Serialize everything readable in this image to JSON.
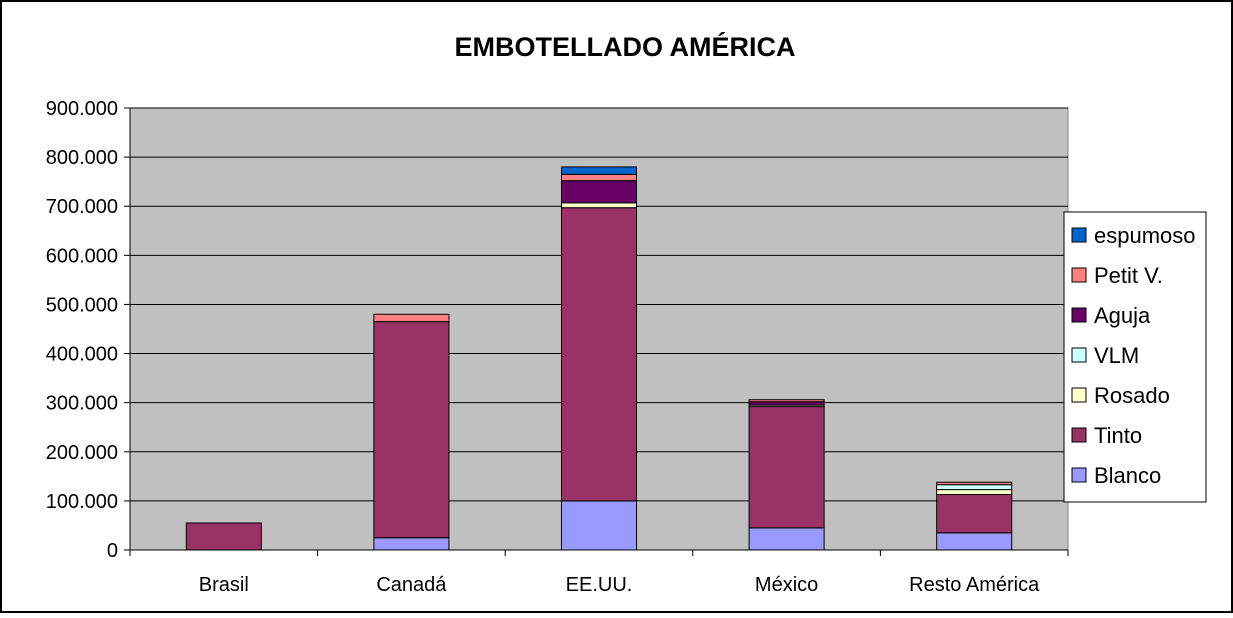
{
  "chart_data": {
    "type": "bar",
    "stacked": true,
    "title": "EMBOTELLADO AMÉRICA",
    "xlabel": "",
    "ylabel": "",
    "categories": [
      "Brasil",
      "Canadá",
      "EE.UU.",
      "México",
      "Resto América"
    ],
    "ylim": [
      0,
      900000
    ],
    "yticks": [
      {
        "value": 0,
        "label": "0"
      },
      {
        "value": 100000,
        "label": "100.000"
      },
      {
        "value": 200000,
        "label": "200.000"
      },
      {
        "value": 300000,
        "label": "300.000"
      },
      {
        "value": 400000,
        "label": "400.000"
      },
      {
        "value": 500000,
        "label": "500.000"
      },
      {
        "value": 600000,
        "label": "600.000"
      },
      {
        "value": 700000,
        "label": "700.000"
      },
      {
        "value": 800000,
        "label": "800.000"
      },
      {
        "value": 900000,
        "label": "900.000"
      }
    ],
    "grid": true,
    "legend_position": "right",
    "series": [
      {
        "name": "Blanco",
        "color": "#9999ff",
        "values": [
          0,
          25000,
          100000,
          45000,
          35000
        ]
      },
      {
        "name": "Tinto",
        "color": "#993366",
        "values": [
          55000,
          440000,
          597000,
          247000,
          78000
        ]
      },
      {
        "name": "Rosado",
        "color": "#ffffcc",
        "values": [
          0,
          0,
          10000,
          3000,
          10000
        ]
      },
      {
        "name": "VLM",
        "color": "#ccffff",
        "values": [
          0,
          0,
          0,
          0,
          10000
        ]
      },
      {
        "name": "Aguja",
        "color": "#660066",
        "values": [
          0,
          0,
          45000,
          7000,
          0
        ]
      },
      {
        "name": "Petit V.",
        "color": "#ff8080",
        "values": [
          0,
          15000,
          13000,
          4000,
          5000
        ]
      },
      {
        "name": "espumoso",
        "color": "#0066cc",
        "values": [
          0,
          0,
          15000,
          0,
          0
        ]
      }
    ],
    "colors": {
      "plot_background": "#c0c0c0",
      "gridline": "#000000",
      "bar_outline": "#000000"
    }
  }
}
